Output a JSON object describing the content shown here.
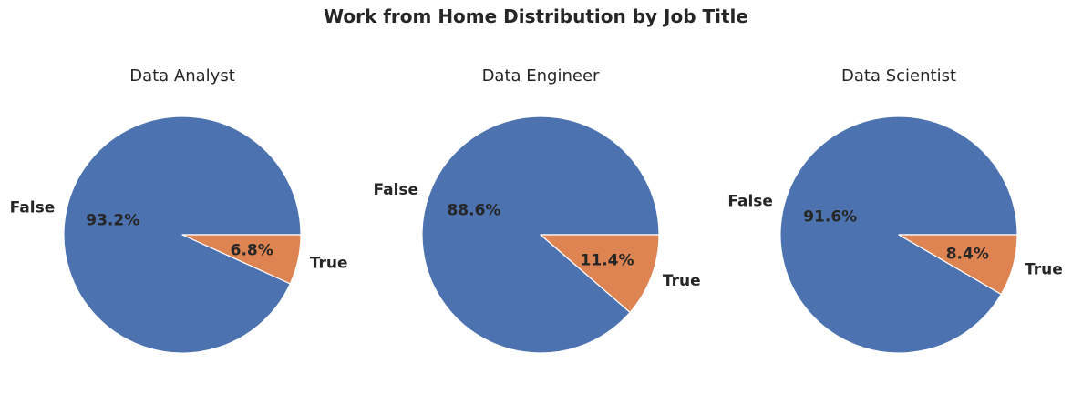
{
  "title": "Work from Home Distribution by Job Title",
  "colors": {
    "False": "#4c72b0",
    "True": "#dd8452",
    "edge": "#ffffff"
  },
  "chart_data": [
    {
      "type": "pie",
      "title": "Data Analyst",
      "labels": [
        "False",
        "True"
      ],
      "values": [
        93.2,
        6.8
      ],
      "value_labels": [
        "93.2%",
        "6.8%"
      ]
    },
    {
      "type": "pie",
      "title": "Data Engineer",
      "labels": [
        "False",
        "True"
      ],
      "values": [
        88.6,
        11.4
      ],
      "value_labels": [
        "88.6%",
        "11.4%"
      ]
    },
    {
      "type": "pie",
      "title": "Data Scientist",
      "labels": [
        "False",
        "True"
      ],
      "values": [
        91.6,
        8.4
      ],
      "value_labels": [
        "91.6%",
        "8.4%"
      ]
    }
  ]
}
